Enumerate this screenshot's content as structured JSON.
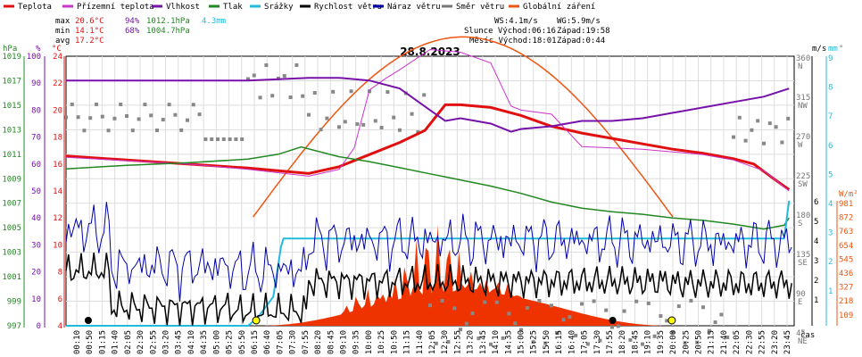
{
  "legend": [
    {
      "label": "Teplota",
      "color": "#e01010"
    },
    {
      "label": "Přízemní teplota",
      "color": "#cc33cc"
    },
    {
      "label": "Vlhkost",
      "color": "#7711aa"
    },
    {
      "label": "Tlak",
      "color": "#228822"
    },
    {
      "label": "Srážky",
      "color": "#22bbdd"
    },
    {
      "label": "Rychlost větru",
      "color": "#000000"
    },
    {
      "label": "Náraz větru",
      "color": "#0000aa"
    },
    {
      "label": "Směr větru",
      "color": "#777777"
    },
    {
      "label": "Globální záření",
      "color": "#ee5511"
    }
  ],
  "stats": {
    "max_label": "max",
    "max_temp": "20.6°C",
    "max_hum": "94%",
    "max_press": "1012.1hPa",
    "max_rain": "4.3mm",
    "min_label": "min",
    "min_temp": "14.1°C",
    "min_hum": "68%",
    "min_press": "1004.7hPa",
    "avg_label": "avg",
    "avg_temp": "17.2°C"
  },
  "info": {
    "ws": "WS:4.1m/s",
    "wg": "WG:5.9m/s",
    "sun": "Slunce Východ:06:16",
    "sun_set": "Západ:19:58",
    "moon": "Měsíc Východ:18:01",
    "moon_set": "Západ:0:44"
  },
  "date": "28.8.2023",
  "axis_units": {
    "hpa": "hPa",
    "pct": "%",
    "degc": "°C",
    "ms": "m/s",
    "mm": "mm",
    "deg": "°",
    "wm2": "W/m²",
    "time": "čas"
  },
  "chart_data": {
    "type": "line",
    "title": "28.8.2023",
    "x_ticks": [
      "00:10",
      "00:50",
      "01:15",
      "01:40",
      "02:05",
      "02:30",
      "02:55",
      "03:20",
      "03:45",
      "04:10",
      "04:35",
      "05:00",
      "05:25",
      "05:50",
      "06:15",
      "06:40",
      "07:05",
      "07:30",
      "07:55",
      "08:20",
      "08:45",
      "09:10",
      "09:35",
      "10:00",
      "10:25",
      "10:50",
      "11:15",
      "11:40",
      "12:05",
      "12:30",
      "12:55",
      "13:20",
      "13:45",
      "14:10",
      "14:35",
      "15:00",
      "15:25",
      "15:50",
      "16:15",
      "16:40",
      "17:05",
      "17:30",
      "17:55",
      "18:20",
      "18:45",
      "19:10",
      "19:35",
      "20:00",
      "20:25",
      "20:50",
      "21:15",
      "21:40",
      "22:05",
      "22:30",
      "22:55",
      "23:20",
      "23:45"
    ],
    "axes": {
      "pressure_hpa": {
        "ticks": [
          "1019",
          "1017",
          "1015",
          "1013",
          "1011",
          "1009",
          "1007",
          "1005",
          "1003",
          "1001",
          "999",
          "997"
        ],
        "color": "#228822"
      },
      "humidity_pct": {
        "ticks": [
          "100",
          "90",
          "80",
          "70",
          "60",
          "50",
          "40",
          "30",
          "20",
          "10",
          "0"
        ],
        "color": "#7711aa"
      },
      "temp_c": {
        "ticks": [
          "24",
          "22",
          "20",
          "18",
          "16",
          "14",
          "12",
          "10",
          "8",
          "6",
          "4"
        ],
        "color": "#e01010"
      },
      "wind_dir": {
        "ticks": [
          "360 N",
          "315 NW",
          "270 W",
          "225 SW",
          "180 S",
          "135 SE",
          "90 E",
          "45 NE"
        ],
        "color": "#777777"
      },
      "wind_ms": {
        "ticks": [
          "6",
          "5",
          "4",
          "3",
          "2",
          "1"
        ],
        "color": "#000000"
      },
      "rain_mm": {
        "ticks": [
          "9",
          "8",
          "7",
          "6",
          "5",
          "4",
          "3",
          "2",
          "1"
        ],
        "color": "#22bbdd"
      },
      "radiation_wm2": {
        "ticks": [
          "981",
          "872",
          "763",
          "654",
          "545",
          "436",
          "327",
          "218",
          "109"
        ],
        "color": "#ee5511"
      }
    },
    "series": [
      {
        "name": "Teplota",
        "unit": "°C",
        "x": [
          "00:00",
          "02:00",
          "04:00",
          "06:00",
          "08:00",
          "09:00",
          "10:00",
          "11:00",
          "11:50",
          "12:30",
          "13:00",
          "14:00",
          "15:00",
          "16:00",
          "17:00",
          "18:00",
          "19:00",
          "20:00",
          "21:00",
          "22:00",
          "22:40",
          "23:20",
          "23:50"
        ],
        "values": [
          16.6,
          16.3,
          16.0,
          15.7,
          15.3,
          15.8,
          16.7,
          17.6,
          18.5,
          20.4,
          20.4,
          20.2,
          19.6,
          18.8,
          18.3,
          17.9,
          17.5,
          17.1,
          16.8,
          16.4,
          16.0,
          14.9,
          14.1
        ]
      },
      {
        "name": "Přízemní teplota",
        "unit": "°C",
        "x": [
          "00:00",
          "04:00",
          "06:00",
          "08:00",
          "09:00",
          "09:30",
          "10:00",
          "10:30",
          "11:00",
          "12:00",
          "13:00",
          "14:00",
          "14:40",
          "15:00",
          "16:00",
          "17:00",
          "18:00",
          "19:00",
          "20:00",
          "21:00",
          "22:00",
          "23:00",
          "23:50"
        ],
        "values": [
          16.5,
          16.0,
          15.6,
          15.1,
          15.6,
          17.2,
          21.5,
          22.3,
          23.0,
          24.5,
          24.3,
          23.5,
          20.3,
          20.0,
          19.7,
          17.3,
          17.2,
          17.1,
          16.9,
          16.7,
          16.3,
          15.5,
          14.0
        ]
      },
      {
        "name": "Vlhkost",
        "unit": "%",
        "x": [
          "00:00",
          "02:00",
          "04:00",
          "06:00",
          "08:00",
          "09:00",
          "10:00",
          "11:00",
          "12:00",
          "12:30",
          "13:00",
          "14:00",
          "14:40",
          "15:00",
          "16:00",
          "17:00",
          "18:00",
          "19:00",
          "20:00",
          "21:00",
          "22:00",
          "23:00",
          "23:50"
        ],
        "values": [
          91,
          91,
          91,
          91,
          92,
          92,
          91,
          88,
          80,
          76,
          77,
          75,
          72,
          73,
          74,
          76,
          76,
          77,
          79,
          81,
          83,
          85,
          88
        ]
      },
      {
        "name": "Tlak",
        "unit": "hPa",
        "x": [
          "00:00",
          "02:00",
          "04:00",
          "06:00",
          "07:00",
          "07:45",
          "09:00",
          "10:00",
          "11:00",
          "12:00",
          "13:00",
          "14:00",
          "15:00",
          "16:00",
          "17:00",
          "18:00",
          "19:00",
          "20:00",
          "21:00",
          "22:00",
          "23:00",
          "23:40",
          "23:50"
        ],
        "values": [
          1009.8,
          1010.1,
          1010.3,
          1010.6,
          1011.0,
          1011.6,
          1010.8,
          1010.4,
          1009.9,
          1009.4,
          1008.9,
          1008.4,
          1007.8,
          1007.1,
          1006.6,
          1006.3,
          1006.1,
          1005.8,
          1005.6,
          1005.3,
          1004.9,
          1005.2,
          1005.8
        ]
      },
      {
        "name": "Srážky",
        "unit": "mm",
        "x": [
          "00:00",
          "06:00",
          "06:20",
          "06:50",
          "07:05",
          "07:10",
          "23:40",
          "23:50"
        ],
        "values": [
          0,
          0,
          0.3,
          1.0,
          2.7,
          3.0,
          3.0,
          4.3
        ]
      }
    ],
    "wind_ms_range": [
      0,
      6
    ],
    "radiation_peak_wm2": 981
  }
}
